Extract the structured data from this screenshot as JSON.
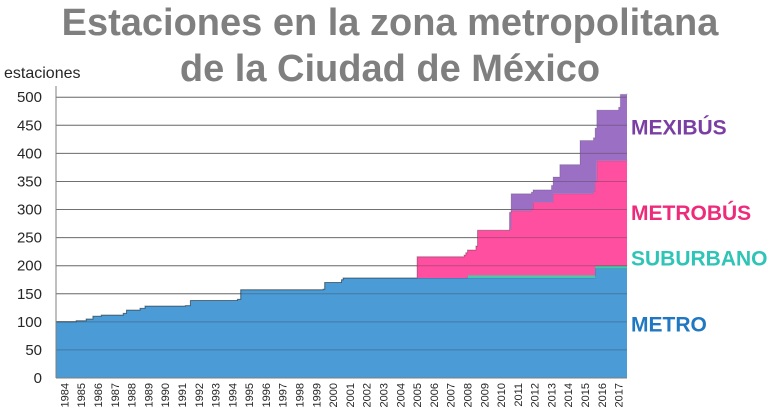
{
  "chart_data": {
    "type": "area",
    "title_lines": [
      "Estaciones en la zona metropolitana",
      "de la Ciudad de México"
    ],
    "ylabel": "estaciones",
    "xlabel": "",
    "ylim": [
      0,
      520
    ],
    "yticks": [
      0,
      50,
      100,
      150,
      200,
      250,
      300,
      350,
      400,
      450,
      500
    ],
    "xlim": [
      1984,
      2018
    ],
    "x_tick_labels": [
      "1984",
      "1985",
      "1986",
      "1987",
      "1988",
      "1989",
      "1990",
      "1991",
      "1992",
      "1993",
      "1994",
      "1995",
      "1996",
      "1997",
      "1998",
      "1999",
      "2000",
      "2001",
      "2002",
      "2003",
      "2004",
      "2005",
      "2006",
      "2007",
      "2008",
      "2009",
      "2010",
      "2011",
      "2012",
      "2013",
      "2014",
      "2015",
      "2016",
      "2017"
    ],
    "grid": true,
    "stacked": true,
    "series": [
      {
        "name": "METRO",
        "color": "#4a9bd6",
        "label_color": "#1f78c1",
        "points": [
          [
            1984,
            100
          ],
          [
            1985,
            100
          ],
          [
            1985.2,
            102
          ],
          [
            1985.8,
            105
          ],
          [
            1986.2,
            110
          ],
          [
            1986.7,
            112
          ],
          [
            1988,
            115
          ],
          [
            1988.2,
            121
          ],
          [
            1989,
            124
          ],
          [
            1989.3,
            128
          ],
          [
            1991.7,
            129
          ],
          [
            1992,
            138
          ],
          [
            1994.8,
            140
          ],
          [
            1995,
            157
          ],
          [
            1999.9,
            158
          ],
          [
            2000,
            170
          ],
          [
            2001,
            175
          ],
          [
            2001.1,
            178
          ],
          [
            2016,
            178
          ],
          [
            2016.1,
            195
          ],
          [
            2018,
            195
          ]
        ]
      },
      {
        "name": "SUBURBANO",
        "color": "#4ac8a8",
        "label_color": "#2ec4b6",
        "points": [
          [
            1984,
            0
          ],
          [
            2008.4,
            0
          ],
          [
            2008.5,
            5
          ],
          [
            2018,
            7
          ]
        ]
      },
      {
        "name": "METROBÚS",
        "color": "#ff4fa0",
        "label_color": "#ee2a7b",
        "points": [
          [
            1984,
            0
          ],
          [
            2005.4,
            0
          ],
          [
            2005.5,
            38
          ],
          [
            2008.3,
            41
          ],
          [
            2008.4,
            45
          ],
          [
            2009,
            52
          ],
          [
            2009.1,
            80
          ],
          [
            2011,
            82
          ],
          [
            2011.1,
            115
          ],
          [
            2012.3,
            118
          ],
          [
            2012.4,
            130
          ],
          [
            2013.5,
            130
          ],
          [
            2013.6,
            145
          ],
          [
            2016,
            150
          ],
          [
            2016.2,
            187
          ],
          [
            2018,
            187
          ]
        ]
      },
      {
        "name": "MEXIBÚS",
        "color": "#9b6fc3",
        "label_color": "#7b3fa3",
        "points": [
          [
            1984,
            0
          ],
          [
            2010.9,
            0
          ],
          [
            2011,
            30
          ],
          [
            2012.3,
            30
          ],
          [
            2012.4,
            22
          ],
          [
            2013.5,
            30
          ],
          [
            2014,
            52
          ],
          [
            2015.1,
            52
          ],
          [
            2015.2,
            95
          ],
          [
            2016.1,
            95
          ],
          [
            2016.2,
            90
          ],
          [
            2017.5,
            95
          ],
          [
            2017.6,
            118
          ],
          [
            2018,
            118
          ]
        ]
      }
    ]
  }
}
